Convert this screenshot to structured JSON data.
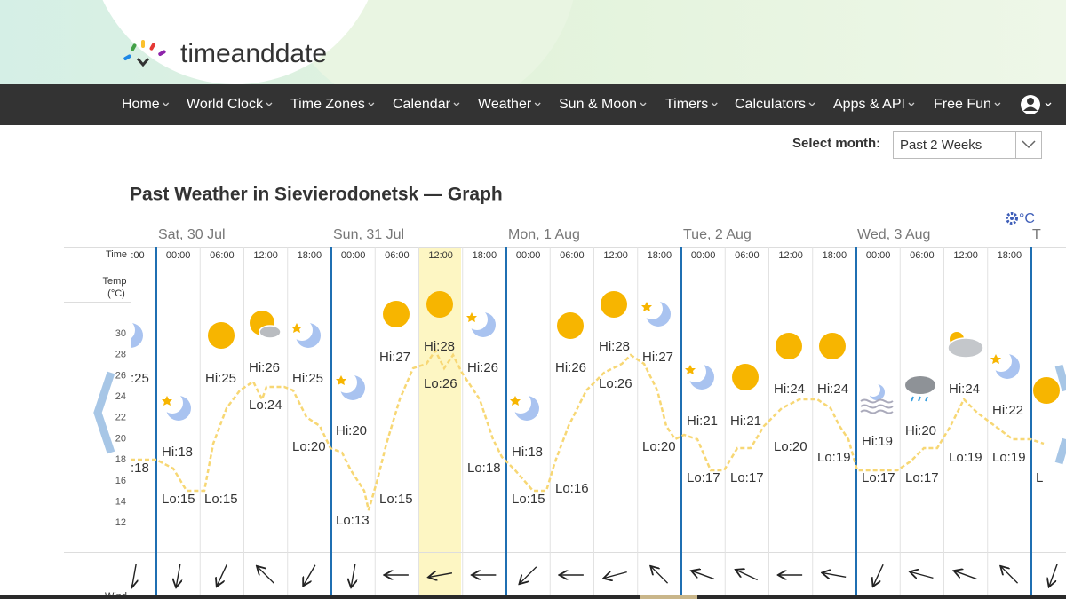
{
  "header": {
    "logo": "timeanddate"
  },
  "nav": {
    "items": [
      "Home",
      "World Clock",
      "Time Zones",
      "Calendar",
      "Weather",
      "Sun & Moon",
      "Timers",
      "Calculators",
      "Apps & API",
      "Free Fun"
    ]
  },
  "month_select": {
    "label": "Select month:",
    "value": "Past 2 Weeks"
  },
  "title": "Past Weather in Sievierodonetsk — Graph",
  "unit": "°C",
  "graph": {
    "days": [
      "Sat, 30 Jul",
      "Sun, 31 Jul",
      "Mon, 1 Aug",
      "Tue, 2 Aug",
      "Wed, 3 Aug",
      "T"
    ],
    "time_label": "Time",
    "temp_label": [
      "Temp",
      "(°C)"
    ],
    "times": [
      ":00",
      "00:00",
      "06:00",
      "12:00",
      "18:00",
      "00:00",
      "06:00",
      "12:00",
      "18:00",
      "00:00",
      "06:00",
      "12:00",
      "18:00",
      "00:00",
      "06:00",
      "12:00",
      "18:00",
      "00:00",
      "06:00",
      "12:00",
      "18:00"
    ],
    "yticks": [
      30,
      28,
      26,
      24,
      22,
      20,
      18,
      16,
      14,
      12
    ],
    "labels": [
      ":25",
      ":18",
      "Hi:18",
      "Lo:15",
      "Lo:15",
      "Hi:25",
      "Hi:26",
      "Lo:24",
      "Hi:25",
      "Lo:20",
      "Hi:20",
      "Lo:13",
      "Hi:27",
      "Lo:15",
      "Hi:28",
      "Lo:26",
      "Hi:26",
      "Lo:18",
      "Hi:18",
      "Lo:15",
      "Hi:26",
      "Lo:16",
      "Hi:28",
      "Lo:26",
      "Hi:27",
      "Lo:20",
      "Hi:21",
      "Lo:17",
      "Hi:21",
      "Lo:17",
      "Hi:24",
      "Lo:20",
      "Hi:24",
      "Lo:19",
      "Hi:19",
      "Lo:17",
      "Hi:20",
      "Lo:17",
      "Hi:24",
      "Lo:19",
      "Hi:22",
      "Lo:19",
      "L"
    ],
    "wind_label": "Wind"
  }
}
